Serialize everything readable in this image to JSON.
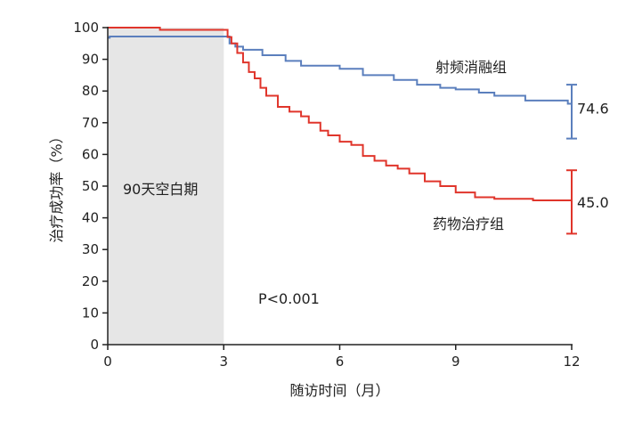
{
  "chart_data": {
    "type": "line",
    "title": "",
    "xlabel": "随访时间（月）",
    "ylabel": "治疗成功率（%）",
    "xlim": [
      0,
      12
    ],
    "ylim": [
      0,
      100
    ],
    "x_ticks": [
      "0",
      "3",
      "6",
      "9",
      "12"
    ],
    "y_ticks": [
      "0",
      "10",
      "20",
      "30",
      "40",
      "50",
      "60",
      "70",
      "80",
      "90",
      "100"
    ],
    "grid": false,
    "blanking_period": {
      "label": "90天空白期",
      "x_start": 0,
      "x_end": 3
    },
    "p_value": "P<0.001",
    "series": [
      {
        "name": "射频消融组",
        "color": "#5b7fbd",
        "final_label": "74.6",
        "ci": [
          65,
          82
        ],
        "x": [
          0,
          0.05,
          3.0,
          3.15,
          3.3,
          3.5,
          4.0,
          4.6,
          5.0,
          6.0,
          6.6,
          7.4,
          8.0,
          8.6,
          9.0,
          9.6,
          10.0,
          10.8,
          11.9,
          12.0
        ],
        "y": [
          96.8,
          97.2,
          97.2,
          95.0,
          94.0,
          93.0,
          91.3,
          89.5,
          88.0,
          87.0,
          85.0,
          83.5,
          82.0,
          81.0,
          80.5,
          79.5,
          78.5,
          77.0,
          76.0,
          74.6
        ]
      },
      {
        "name": "药物治疗组",
        "color": "#e0352b",
        "final_label": "45.0",
        "ci": [
          35,
          55
        ],
        "x": [
          0,
          1.35,
          3.0,
          3.1,
          3.2,
          3.35,
          3.5,
          3.65,
          3.8,
          3.95,
          4.1,
          4.4,
          4.7,
          5.0,
          5.2,
          5.5,
          5.7,
          6.0,
          6.3,
          6.6,
          6.9,
          7.2,
          7.5,
          7.8,
          8.2,
          8.6,
          9.0,
          9.5,
          10.0,
          11.0,
          12.0
        ],
        "y": [
          100,
          99.3,
          99.3,
          97.0,
          95.0,
          92.0,
          89.0,
          86.0,
          84.0,
          81.0,
          78.5,
          75.0,
          73.5,
          72.0,
          70.0,
          67.5,
          66.0,
          64.0,
          63.0,
          59.5,
          58.0,
          56.5,
          55.5,
          54.0,
          51.5,
          50.0,
          48.0,
          46.5,
          46.0,
          45.5,
          45.0
        ]
      }
    ]
  }
}
